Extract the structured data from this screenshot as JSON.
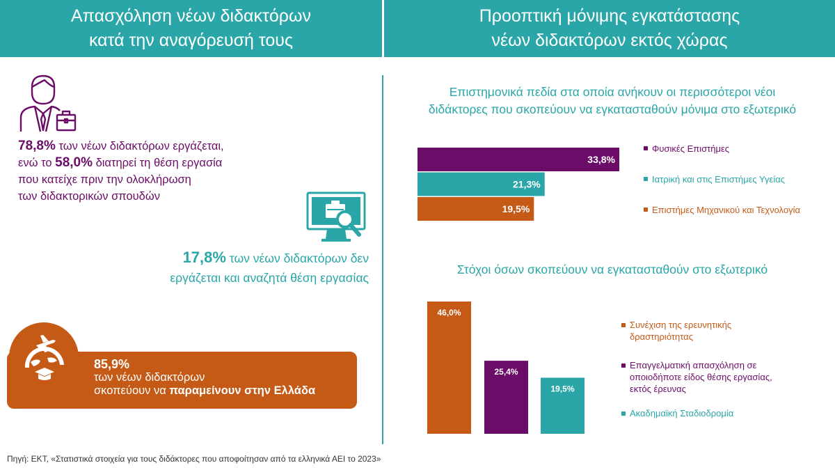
{
  "headers": {
    "left": [
      "Απασχόληση νέων διδακτόρων",
      "κατά την αναγόρευσή τους"
    ],
    "right": [
      "Προοπτική μόνιμης εγκατάστασης",
      "νέων διδακτόρων εκτός χώρας"
    ]
  },
  "colors": {
    "teal": "#2aa6a8",
    "purple": "#6b0c68",
    "orange": "#c45a16"
  },
  "icons": {
    "employee": "businessman-briefcase-icon",
    "job_search": "monitor-search-briefcase-icon",
    "stay": "plane-globe-graduation-cap-icon"
  },
  "stats": {
    "employed": {
      "pct1": "78,8%",
      "line1_rest": " των νέων διδακτόρων εργάζεται,",
      "line2_pre": "ενώ το ",
      "pct2": "58,0%",
      "line2_rest": " διατηρεί τη θέση εργασία",
      "line3": "που κατείχε πριν την ολοκλήρωση",
      "line4": "των διδακτορικών σπουδών"
    },
    "seeking": {
      "pct": "17,8%",
      "line1_rest": " των νέων διδακτόρων δεν",
      "line2": "εργάζεται και αναζητά θέση εργασίας"
    },
    "stay": {
      "pct": "85,9%",
      "line2": "των νέων διδακτόρων",
      "line3_pre": "σκοπεύουν να ",
      "line3_bold": "παραμείνουν στην Ελλάδα"
    }
  },
  "chart_data": [
    {
      "type": "bar",
      "orientation": "horizontal",
      "title": "Επιστημονικά πεδία στα οποία ανήκουν οι περισσότεροι νέοι διδάκτορες που σκοπεύουν να εγκατασταθούν μόνιμα στο εξωτερικό",
      "title_lines": [
        "Επιστημονικά πεδία στα οποία ανήκουν οι περισσότεροι νέοι",
        "διδάκτορες που σκοπεύουν να εγκατασταθούν μόνιμα στο εξωτερικό"
      ],
      "categories": [
        "Φυσικές Επιστήμες",
        "Ιατρική και στις Επιστήμες Υγείας",
        "Επιστήμες Μηχανικού και Τεχνολογία"
      ],
      "values": [
        33.8,
        21.3,
        19.5
      ],
      "labels": [
        "33,8%",
        "21,3%",
        "19,5%"
      ],
      "colors": [
        "#6b0c68",
        "#2aa6a8",
        "#c45a16"
      ],
      "legend": "right"
    },
    {
      "type": "bar",
      "orientation": "vertical",
      "title": "Στόχοι όσων σκοπεύουν να εγκατασταθούν στο εξωτερικό",
      "categories": [
        [
          "Συνέχιση της ερευνητικής",
          "δραστηριότητας"
        ],
        [
          "Επαγγελματική απασχόληση σε",
          "οποιοδήποτε είδος θέσης εργασίας,",
          "εκτός έρευνας"
        ],
        [
          "Ακαδημαϊκή Σταδιοδρομία"
        ]
      ],
      "values": [
        46.0,
        25.4,
        19.5
      ],
      "labels": [
        "46,0%",
        "25,4%",
        "19,5%"
      ],
      "colors": [
        "#c45a16",
        "#6b0c68",
        "#2aa6a8"
      ],
      "legend": "right"
    }
  ],
  "source": "Πηγή: ΕΚΤ, «Στατιστικά στοιχεία για τους διδάκτορες που αποφοίτησαν από τα ελληνικά ΑΕΙ το 2023»"
}
